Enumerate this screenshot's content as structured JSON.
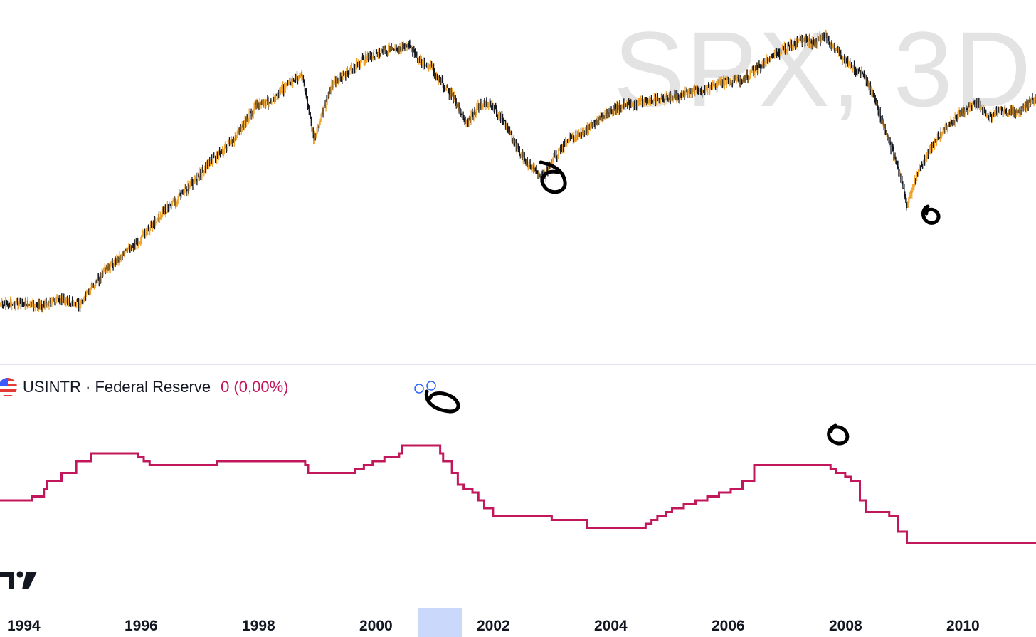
{
  "watermark": "SPX, 3D",
  "indicator": {
    "name": "USINTR · Federal Reserve",
    "value": "0 (0,00%)",
    "icon": "us-flag-icon",
    "color": "#c2185b"
  },
  "colors": {
    "candle_up": "#f0a530",
    "candle_wick": "#131722",
    "rate_line": "#c2185b",
    "highlight": "#c9d8fb"
  },
  "chart_data": [
    {
      "type": "line",
      "series": [
        {
          "x": [
            1993.5,
            1993.9,
            1994.2,
            1994.6,
            1994.9,
            1995.1,
            1995.3,
            1995.6,
            1995.9,
            1996.2,
            1996.5,
            1996.8,
            1997.0,
            1997.3,
            1997.5,
            1997.7,
            1997.9,
            1998.2,
            1998.5,
            1998.7,
            1998.9,
            1999.2,
            1999.5,
            1999.8,
            2000.0,
            2000.2,
            2000.5,
            2000.7,
            2000.9,
            2001.1,
            2001.3,
            2001.5,
            2001.7,
            2001.9,
            2002.2,
            2002.4,
            2002.6,
            2002.8,
            2003.0,
            2003.2,
            2003.5,
            2003.8,
            2004.1,
            2004.4,
            2004.7,
            2005.0,
            2005.3,
            2005.6,
            2005.9,
            2006.2,
            2006.4,
            2006.6,
            2006.9,
            2007.2,
            2007.4,
            2007.6,
            2007.8,
            2008.0,
            2008.3,
            2008.5,
            2008.7,
            2008.9,
            2009.0,
            2009.2,
            2009.4,
            2009.6,
            2009.9,
            2010.2,
            2010.4,
            2010.6,
            2010.9,
            2011.2,
            2011.5
          ]
        }
      ]
    },
    {
      "type": "line",
      "x": [
        1993.5,
        1994.0,
        1994.1,
        1994.3,
        1994.35,
        1994.6,
        1994.85,
        1995.1,
        1995.5,
        1995.9,
        1996.0,
        1996.1,
        1997.2,
        1997.25,
        1998.7,
        1998.75,
        1998.8,
        1999.5,
        1999.6,
        1999.75,
        1999.9,
        2000.1,
        2000.35,
        2000.4,
        2000.9,
        2001.05,
        2001.1,
        2001.25,
        2001.35,
        2001.45,
        2001.6,
        2001.7,
        2001.8,
        2001.95,
        2002.9,
        2002.95,
        2003.5,
        2003.55,
        2004.45,
        2004.55,
        2004.65,
        2004.75,
        2004.9,
        2005.0,
        2005.2,
        2005.4,
        2005.6,
        2005.8,
        2006.0,
        2006.2,
        2006.4,
        2007.6,
        2007.7,
        2007.8,
        2007.95,
        2008.05,
        2008.2,
        2008.3,
        2008.7,
        2008.85,
        2009.0,
        2011.5
      ],
      "values": [
        3.0,
        3.0,
        3.25,
        3.75,
        4.25,
        4.75,
        5.5,
        6.0,
        6.0,
        5.75,
        5.5,
        5.25,
        5.25,
        5.5,
        5.5,
        5.25,
        4.75,
        4.75,
        5.0,
        5.25,
        5.5,
        5.75,
        6.0,
        6.5,
        6.5,
        6.0,
        5.5,
        4.75,
        4.0,
        3.75,
        3.5,
        3.0,
        2.5,
        2.0,
        2.0,
        1.75,
        1.75,
        1.25,
        1.25,
        1.5,
        1.75,
        2.0,
        2.25,
        2.5,
        2.75,
        3.0,
        3.25,
        3.5,
        3.75,
        4.25,
        5.25,
        5.25,
        5.0,
        4.75,
        4.5,
        4.25,
        3.0,
        2.25,
        2.0,
        1.0,
        0.25,
        0.25
      ]
    }
  ],
  "xaxis": {
    "ticks": [
      "1994",
      "1996",
      "1998",
      "2000",
      "2002",
      "2004",
      "2006",
      "2008",
      "2010"
    ]
  }
}
